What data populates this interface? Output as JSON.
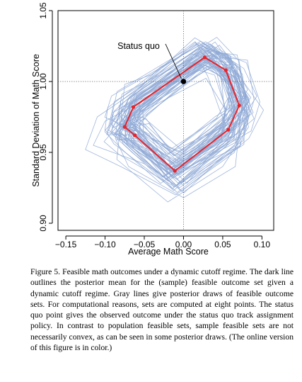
{
  "chart_data": {
    "type": "line",
    "xlabel": "Average Math Score",
    "ylabel": "Standard Deviation of Math Score",
    "xlim": [
      -0.16,
      0.115
    ],
    "ylim": [
      0.895,
      1.05
    ],
    "xticks": [
      "−0.15",
      "−0.10",
      "−0.05",
      "0.00",
      "0.05",
      "0.10"
    ],
    "xtick_values": [
      -0.15,
      -0.1,
      -0.05,
      0.0,
      0.05,
      0.1
    ],
    "yticks": [
      "0.90",
      "0.95",
      "1.00",
      "1.05"
    ],
    "ytick_values": [
      0.9,
      0.95,
      1.0,
      1.05
    ],
    "reference_lines": {
      "x": 0.0,
      "y": 1.0
    },
    "annotation": {
      "text": "Status quo",
      "point": [
        0.0,
        1.0
      ]
    },
    "posterior_mean": {
      "points": [
        [
          0.027,
          1.017
        ],
        [
          0.054,
          1.008
        ],
        [
          0.071,
          0.983
        ],
        [
          0.057,
          0.966
        ],
        [
          -0.011,
          0.937
        ],
        [
          -0.062,
          0.962
        ],
        [
          -0.075,
          0.968
        ],
        [
          -0.064,
          0.982
        ]
      ],
      "color": "#e8232a"
    },
    "draws": {
      "count": 60,
      "color": "#8fa9d6",
      "extra_outlines": [
        [
          [
            -0.1,
            0.972
          ],
          [
            -0.04,
            0.99
          ],
          [
            0.03,
            1.022
          ],
          [
            0.07,
            1.005
          ],
          [
            0.085,
            0.978
          ],
          [
            0.065,
            0.955
          ],
          [
            -0.005,
            0.925
          ],
          [
            -0.05,
            0.942
          ],
          [
            -0.115,
            0.955
          ]
        ],
        [
          [
            -0.075,
            0.998
          ],
          [
            -0.04,
            1.005
          ],
          [
            0.02,
            1.027
          ],
          [
            0.06,
            1.013
          ],
          [
            0.083,
            0.968
          ],
          [
            0.05,
            0.94
          ],
          [
            -0.02,
            0.915
          ],
          [
            -0.085,
            0.945
          ]
        ],
        [
          [
            -0.07,
            0.988
          ],
          [
            -0.03,
            1.01
          ],
          [
            0.028,
            1.028
          ],
          [
            0.06,
            1.018
          ],
          [
            0.075,
            0.985
          ],
          [
            0.066,
            0.94
          ],
          [
            0.0,
            0.918
          ],
          [
            -0.07,
            0.94
          ],
          [
            -0.087,
            0.96
          ]
        ],
        [
          [
            -0.11,
            0.975
          ],
          [
            -0.07,
            0.99
          ],
          [
            0.025,
            1.025
          ],
          [
            0.058,
            1.015
          ],
          [
            0.078,
            0.98
          ],
          [
            0.065,
            0.95
          ],
          [
            -0.01,
            0.92
          ],
          [
            -0.08,
            0.94
          ],
          [
            -0.125,
            0.952
          ]
        ]
      ]
    },
    "grid": false,
    "legend": "none"
  },
  "caption": "Figure 5. Feasible math outcomes under a dynamic cutoff regime. The dark line outlines the posterior mean for the (sample) feasible outcome set given a dynamic cutoff regime. Gray lines give posterior draws of feasible outcome sets. For computational reasons, sets are computed at eight points. The status quo point gives the observed outcome under the status quo track assignment policy. In contrast to population feasible sets, sample feasible sets are not necessarily convex, as can be seen in some posterior draws. (The online version of this figure is in color.)"
}
